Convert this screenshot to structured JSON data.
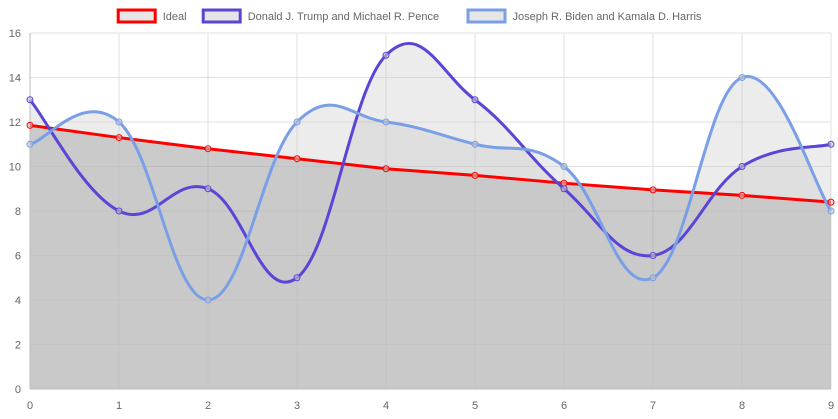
{
  "chart_data": {
    "type": "line",
    "x": [
      0,
      1,
      2,
      3,
      4,
      5,
      6,
      7,
      8,
      9
    ],
    "xlim": [
      0,
      9
    ],
    "ylim": [
      0,
      16
    ],
    "yticks": [
      0,
      2,
      4,
      6,
      8,
      10,
      12,
      14,
      16
    ],
    "grid": true,
    "legend_position": "top",
    "series": [
      {
        "name": "Ideal",
        "color": "#ff0000",
        "legend_fill": "#e6e6e6",
        "values": [
          11.85,
          11.3,
          10.8,
          10.35,
          9.9,
          9.6,
          9.25,
          8.95,
          8.7,
          8.4
        ]
      },
      {
        "name": "Donald J. Trump and Michael R. Pence",
        "color": "#5a45d6",
        "legend_fill": "#e6e6e6",
        "values": [
          13,
          8,
          9,
          5,
          15,
          13,
          9,
          6,
          10,
          11
        ]
      },
      {
        "name": "Joseph R. Biden and Kamala D. Harris",
        "color": "#7a9fe6",
        "legend_fill": "#e6e6e6",
        "values": [
          11,
          12,
          4,
          12,
          12,
          11,
          10,
          5,
          14,
          8
        ]
      }
    ],
    "fill_colors": [
      "rgba(160,160,160,0.55)",
      "rgba(200,200,200,0.35)",
      "rgba(200,200,200,0.35)"
    ]
  }
}
